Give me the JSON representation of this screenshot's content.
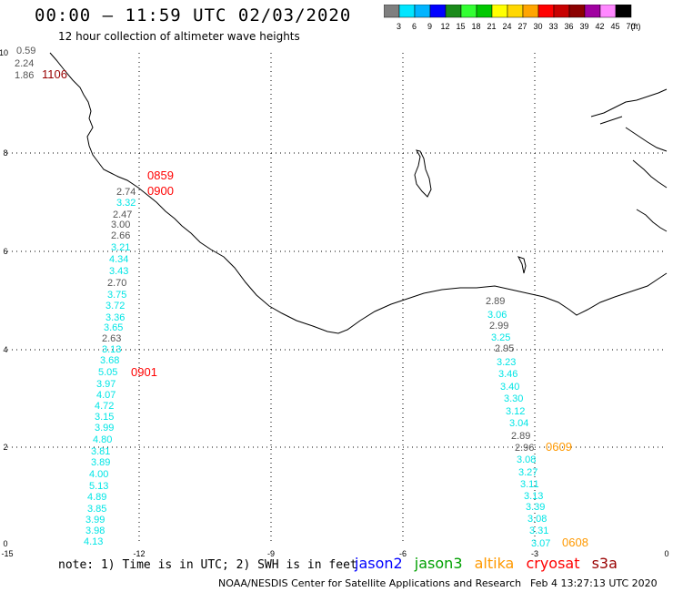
{
  "header": {
    "title": "00:00 – 11:59 UTC 02/03/2020",
    "subtitle": "12 hour collection of altimeter wave heights"
  },
  "colorbar": {
    "labels": [
      "3",
      "6",
      "9",
      "12",
      "15",
      "18",
      "21",
      "24",
      "27",
      "30",
      "33",
      "36",
      "39",
      "42",
      "45",
      "70"
    ],
    "unit": "(ft)",
    "colors": [
      "#7f7f7f",
      "#00e5ff",
      "#00b4ff",
      "#0000ff",
      "#1a8a1a",
      "#33ff33",
      "#00c800",
      "#ffff00",
      "#ffd700",
      "#ffa500",
      "#ff0000",
      "#c80000",
      "#8b0000",
      "#a000a0",
      "#ff88ff",
      "#000000"
    ]
  },
  "map": {
    "x_ticks": [
      "-15",
      "-12",
      "-9",
      "-6",
      "-3",
      "0"
    ],
    "y_ticks": [
      "0",
      "2",
      "4",
      "6",
      "8",
      "10"
    ],
    "series_colors": {
      "jason2": "#0000ff",
      "jason3": "#00a000",
      "altika": "#ff9900",
      "cryosat": "#ff0000",
      "s3a": "#990000",
      "swh_cyan": "#00e5e5",
      "swh_gray": "#555555"
    },
    "labels": [
      {
        "text": "0.59",
        "color": "gray"
      },
      {
        "text": "2.24",
        "color": "gray"
      },
      {
        "text": "1.86",
        "color": "gray"
      },
      {
        "text": "1106",
        "color": "s3a"
      },
      {
        "text": "0859",
        "color": "cryosat"
      },
      {
        "text": "0900",
        "color": "cryosat"
      },
      {
        "text": "2.74",
        "color": "gray"
      },
      {
        "text": "3.32",
        "color": "cyan"
      },
      {
        "text": "2.47",
        "color": "gray"
      },
      {
        "text": "3.00",
        "color": "gray"
      },
      {
        "text": "2.66",
        "color": "gray"
      },
      {
        "text": "3.21",
        "color": "cyan"
      },
      {
        "text": "4.34",
        "color": "cyan"
      },
      {
        "text": "3.43",
        "color": "cyan"
      },
      {
        "text": "2.70",
        "color": "gray"
      },
      {
        "text": "3.75",
        "color": "cyan"
      },
      {
        "text": "3.72",
        "color": "cyan"
      },
      {
        "text": "3.36",
        "color": "cyan"
      },
      {
        "text": "3.65",
        "color": "cyan"
      },
      {
        "text": "2.63",
        "color": "gray"
      },
      {
        "text": "3.13",
        "color": "cyan"
      },
      {
        "text": "3.68",
        "color": "cyan"
      },
      {
        "text": "5.05",
        "color": "cyan"
      },
      {
        "text": "0901",
        "color": "cryosat"
      },
      {
        "text": "3.97",
        "color": "cyan"
      },
      {
        "text": "4.07",
        "color": "cyan"
      },
      {
        "text": "4.72",
        "color": "cyan"
      },
      {
        "text": "3.15",
        "color": "cyan"
      },
      {
        "text": "3.99",
        "color": "cyan"
      },
      {
        "text": "4.80",
        "color": "cyan"
      },
      {
        "text": "3.81",
        "color": "cyan"
      },
      {
        "text": "3.89",
        "color": "cyan"
      },
      {
        "text": "4.00",
        "color": "cyan"
      },
      {
        "text": "5.13",
        "color": "cyan"
      },
      {
        "text": "4.89",
        "color": "cyan"
      },
      {
        "text": "3.85",
        "color": "cyan"
      },
      {
        "text": "3.99",
        "color": "cyan"
      },
      {
        "text": "3.98",
        "color": "cyan"
      },
      {
        "text": "4.13",
        "color": "cyan"
      },
      {
        "text": "2.89",
        "color": "gray"
      },
      {
        "text": "3.06",
        "color": "cyan"
      },
      {
        "text": "2.99",
        "color": "gray"
      },
      {
        "text": "3.25",
        "color": "cyan"
      },
      {
        "text": "2.95",
        "color": "gray"
      },
      {
        "text": "3.23",
        "color": "cyan"
      },
      {
        "text": "3.46",
        "color": "cyan"
      },
      {
        "text": "3.40",
        "color": "cyan"
      },
      {
        "text": "3.30",
        "color": "cyan"
      },
      {
        "text": "3.12",
        "color": "cyan"
      },
      {
        "text": "3.04",
        "color": "cyan"
      },
      {
        "text": "2.89",
        "color": "gray"
      },
      {
        "text": "2.96",
        "color": "gray"
      },
      {
        "text": "0609",
        "color": "altika"
      },
      {
        "text": "3.08",
        "color": "cyan"
      },
      {
        "text": "3.27",
        "color": "cyan"
      },
      {
        "text": "3.11",
        "color": "cyan"
      },
      {
        "text": "3.13",
        "color": "cyan"
      },
      {
        "text": "3.39",
        "color": "cyan"
      },
      {
        "text": "3.08",
        "color": "cyan"
      },
      {
        "text": "3.31",
        "color": "cyan"
      },
      {
        "text": "3.07",
        "color": "cyan"
      },
      {
        "text": "0608",
        "color": "altika"
      }
    ]
  },
  "footer": {
    "note": "note: 1) Time is in UTC; 2) SWH is in feet",
    "legend": [
      {
        "name": "jason2",
        "color": "#0000ff"
      },
      {
        "name": "jason3",
        "color": "#00a000"
      },
      {
        "name": "altika",
        "color": "#ff9900"
      },
      {
        "name": "cryosat",
        "color": "#ff0000"
      },
      {
        "name": "s3a",
        "color": "#990000"
      }
    ],
    "credit": "NOAA/NESDIS Center for Satellite Applications and Research",
    "timestamp": "Feb  4 13:27:13 UTC 2020"
  }
}
